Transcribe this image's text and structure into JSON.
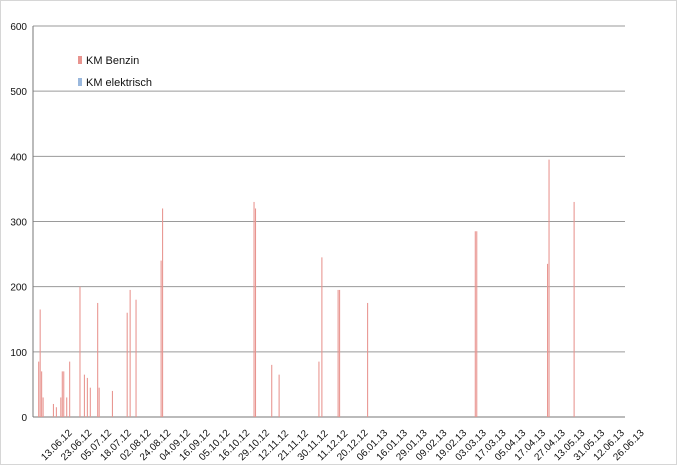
{
  "chart_data": {
    "type": "bar",
    "stacked": true,
    "title": "",
    "xlabel": "",
    "ylabel": "",
    "ylim": [
      0,
      600
    ],
    "yticks": [
      0,
      100,
      200,
      300,
      400,
      500,
      600
    ],
    "grid": true,
    "legend_position": "top-left",
    "x_tick_labels": [
      "13.06.12",
      "23.06.12",
      "05.07.12",
      "18.07.12",
      "02.08.12",
      "24.08.12",
      "04.09.12",
      "16.09.12",
      "05.10.12",
      "16.10.12",
      "29.10.12",
      "12.11.12",
      "21.11.12",
      "30.11.12",
      "11.12.12",
      "20.12.12",
      "06.01.13",
      "16.01.13",
      "29.01.13",
      "09.02.13",
      "19.02.13",
      "03.03.13",
      "17.03.13",
      "05.04.13",
      "17.04.13",
      "27.04.13",
      "13.05.13",
      "31.05.13",
      "12.06.13",
      "26.06.13"
    ],
    "series": [
      {
        "name": "KM Benzin",
        "color": "#e8948f",
        "values": [
          0,
          0,
          85,
          165,
          70,
          30,
          0,
          0,
          0,
          0,
          0,
          0,
          20,
          0,
          15,
          0,
          0,
          30,
          70,
          70,
          0,
          30,
          0,
          85,
          0,
          0,
          0,
          0,
          0,
          0,
          200,
          0,
          0,
          65,
          0,
          60,
          0,
          45,
          0,
          0,
          0,
          0,
          175,
          45,
          0,
          0,
          0,
          0,
          0,
          0,
          0,
          0,
          40,
          0,
          0,
          0,
          0,
          0,
          0,
          0,
          0,
          0,
          160,
          0,
          195,
          0,
          0,
          0,
          180,
          0,
          0,
          0,
          0,
          0,
          0,
          0,
          0,
          0,
          0,
          0,
          0,
          0,
          0,
          0,
          0,
          240,
          320,
          0,
          0,
          0,
          0,
          0,
          0,
          0,
          0,
          0,
          0,
          0,
          0,
          0,
          0,
          0,
          0,
          0,
          0,
          0,
          0,
          0,
          0,
          0,
          0,
          0,
          0,
          0,
          0,
          0,
          0,
          0,
          0,
          0,
          0,
          0,
          0,
          0,
          0,
          0,
          0,
          0,
          0,
          0,
          0,
          0,
          0,
          0,
          0,
          0,
          0,
          0,
          0,
          0,
          0,
          0,
          0,
          0,
          0,
          0,
          0,
          0,
          330,
          320,
          0,
          0,
          0,
          0,
          0,
          0,
          0,
          0,
          0,
          0,
          80,
          0,
          0,
          0,
          0,
          65,
          0,
          0,
          0,
          0,
          0,
          0,
          0,
          0,
          0,
          0,
          0,
          0,
          0,
          0,
          0,
          0,
          0,
          0,
          0,
          0,
          0,
          0,
          0,
          0,
          0,
          0,
          85,
          0,
          245,
          0,
          0,
          0,
          0,
          0,
          0,
          0,
          0,
          0,
          0,
          195,
          195,
          0,
          0,
          0,
          0,
          0,
          0,
          0,
          0,
          0,
          0,
          0,
          0,
          0,
          0,
          0,
          0,
          0,
          0,
          175,
          0,
          0,
          0,
          0,
          0,
          0,
          0,
          0,
          0,
          0,
          0,
          0,
          0,
          0,
          0,
          0,
          0,
          0,
          0,
          0,
          0,
          0,
          0,
          0,
          0,
          0,
          0,
          0,
          0,
          0,
          0,
          0,
          0,
          0,
          0,
          0,
          0,
          0,
          0,
          0,
          0,
          0,
          0,
          0,
          0,
          0,
          0,
          0,
          0,
          0,
          0,
          0,
          0,
          0,
          0,
          0,
          0,
          0,
          0,
          0,
          0,
          0,
          0,
          0,
          0,
          0,
          0,
          0,
          0,
          0,
          0,
          0,
          285,
          285,
          0,
          0,
          0,
          0,
          0,
          0,
          0,
          0,
          0,
          0,
          0,
          0,
          0,
          0,
          0,
          0,
          0,
          0,
          0,
          0,
          0,
          0,
          0,
          0,
          0,
          0,
          0,
          0,
          0,
          0,
          0,
          0,
          0,
          0,
          0,
          0,
          0,
          0,
          0,
          0,
          0,
          0,
          0,
          0,
          0,
          0,
          0,
          235,
          395,
          0,
          0,
          0,
          0,
          0,
          0,
          0,
          0,
          0,
          0,
          0,
          0,
          0,
          0,
          0,
          0,
          330,
          0,
          0,
          0,
          0,
          0,
          0,
          0,
          0,
          0,
          0,
          0,
          0,
          0,
          0,
          0,
          0,
          0,
          0,
          0,
          0,
          0,
          0,
          0,
          0,
          0,
          0,
          0,
          0,
          0,
          0,
          0,
          0,
          0,
          0
        ],
        "comment_removed": true
      },
      {
        "name": "KM elektrisch",
        "color": "#9ab8dd",
        "values": []
      }
    ]
  },
  "legend": {
    "items": [
      {
        "label": "KM Benzin",
        "color": "#e8948f"
      },
      {
        "label": "KM elektrisch",
        "color": "#9ab8dd"
      }
    ]
  }
}
